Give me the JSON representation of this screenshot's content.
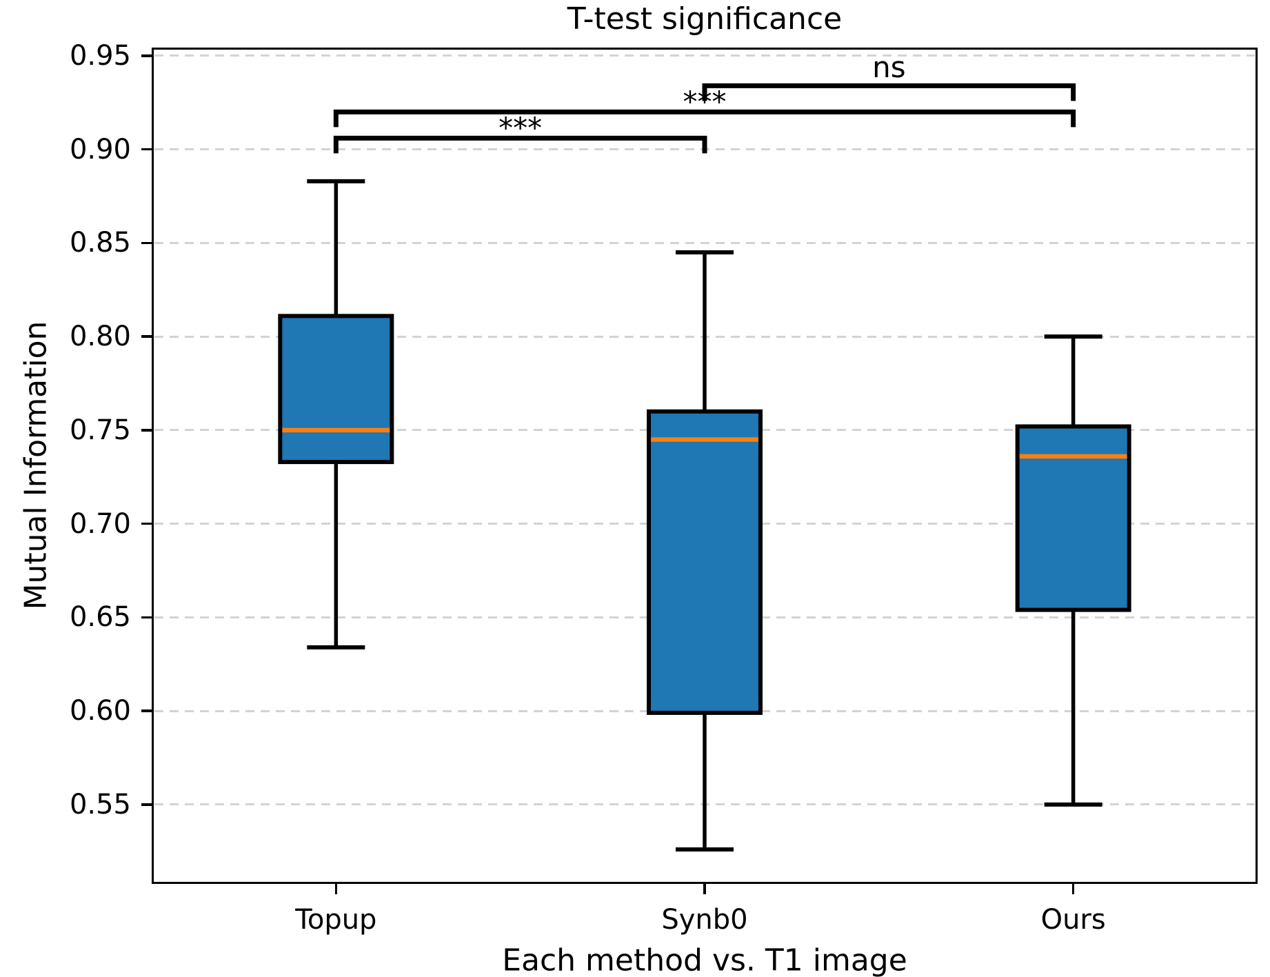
{
  "chart_data": {
    "type": "boxplot",
    "title": "T-test significance",
    "xlabel": "Each method vs. T1 image",
    "ylabel": "Mutual Information",
    "categories": [
      "Topup",
      "Synb0",
      "Ours"
    ],
    "ylim": [
      0.5076,
      0.9544
    ],
    "yticks": [
      0.95,
      0.9,
      0.85,
      0.8,
      0.75,
      0.7,
      0.65,
      0.6,
      0.55
    ],
    "ytick_labels": [
      "0.95",
      "0.90",
      "0.85",
      "0.80",
      "0.75",
      "0.70",
      "0.65",
      "0.60",
      "0.55"
    ],
    "grid": "horizontal-dashed",
    "legend": "none",
    "boxes": [
      {
        "label": "Topup",
        "whisker_low": 0.634,
        "q1": 0.733,
        "median": 0.75,
        "q3": 0.811,
        "whisker_high": 0.883
      },
      {
        "label": "Synb0",
        "whisker_low": 0.526,
        "q1": 0.599,
        "median": 0.745,
        "q3": 0.76,
        "whisker_high": 0.845
      },
      {
        "label": "Ours",
        "whisker_low": 0.55,
        "q1": 0.654,
        "median": 0.736,
        "q3": 0.752,
        "whisker_high": 0.8
      }
    ],
    "significance_brackets": [
      {
        "groups": [
          "Topup",
          "Synb0"
        ],
        "label": "***",
        "y": 0.906
      },
      {
        "groups": [
          "Topup",
          "Ours"
        ],
        "label": "***",
        "y": 0.92
      },
      {
        "groups": [
          "Synb0",
          "Ours"
        ],
        "label": "ns",
        "y": 0.934
      }
    ],
    "colors": {
      "box_fill": "#1f77b4",
      "median": "#ff7f0e",
      "line": "#000000",
      "grid": "#d3d3d3"
    }
  }
}
